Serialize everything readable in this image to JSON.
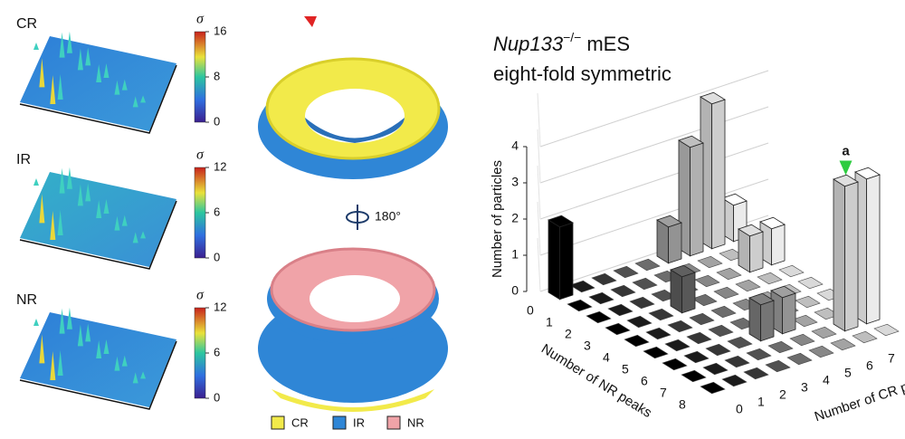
{
  "surface_panels": [
    {
      "label": "CR",
      "colorbar_symbol": "σ",
      "lim": [
        0,
        16
      ],
      "ticks": [
        0,
        8,
        16
      ]
    },
    {
      "label": "IR",
      "colorbar_symbol": "σ",
      "lim": [
        0,
        12
      ],
      "ticks": [
        0,
        6,
        12
      ]
    },
    {
      "label": "NR",
      "colorbar_symbol": "σ",
      "lim": [
        0,
        12
      ],
      "ticks": [
        0,
        6,
        12
      ]
    }
  ],
  "structure": {
    "rotation": "180°",
    "legend": [
      {
        "label": "CR",
        "color": "#f2ea4a"
      },
      {
        "label": "IR",
        "color": "#2f86d6"
      },
      {
        "label": "NR",
        "color": "#f0a3a8"
      }
    ]
  },
  "chart_data": {
    "type": "bar3d",
    "title_italic": "Nup133",
    "title_superscript": "−/−",
    "title_rest": "mES",
    "subtitle": "eight-fold symmetric",
    "y_label": "Number of particles",
    "x_label": "Number of CR peaks",
    "z_label": "Number of NR peaks",
    "x_categories": [
      0,
      1,
      2,
      3,
      4,
      5,
      6,
      7,
      8
    ],
    "z_categories": [
      0,
      1,
      2,
      3,
      4,
      5,
      6,
      7,
      8
    ],
    "values": [
      [
        2,
        0,
        0,
        0,
        0,
        1,
        3,
        4,
        1
      ],
      [
        0,
        0,
        0,
        0,
        0,
        0,
        0,
        0,
        0
      ],
      [
        0,
        0,
        0,
        0,
        0,
        0,
        0,
        1,
        1
      ],
      [
        0,
        0,
        0,
        1,
        0,
        0,
        0,
        0,
        0
      ],
      [
        0,
        0,
        0,
        0,
        0,
        0,
        0,
        0,
        0
      ],
      [
        0,
        0,
        0,
        0,
        0,
        0,
        0,
        0,
        0
      ],
      [
        0,
        0,
        0,
        0,
        1,
        1,
        0,
        0,
        0
      ],
      [
        0,
        0,
        0,
        0,
        0,
        0,
        0,
        4,
        4
      ],
      [
        0,
        0,
        0,
        0,
        0,
        0,
        0,
        0,
        0
      ]
    ],
    "ylim": [
      0,
      4
    ],
    "yticks": [
      0,
      1,
      2,
      3,
      4
    ],
    "grid": true,
    "color_scale": [
      "#000000",
      "#ffffff"
    ],
    "annotations": [
      {
        "text": "a",
        "x": 7,
        "z": 7,
        "color": "#2ecc40"
      }
    ]
  }
}
